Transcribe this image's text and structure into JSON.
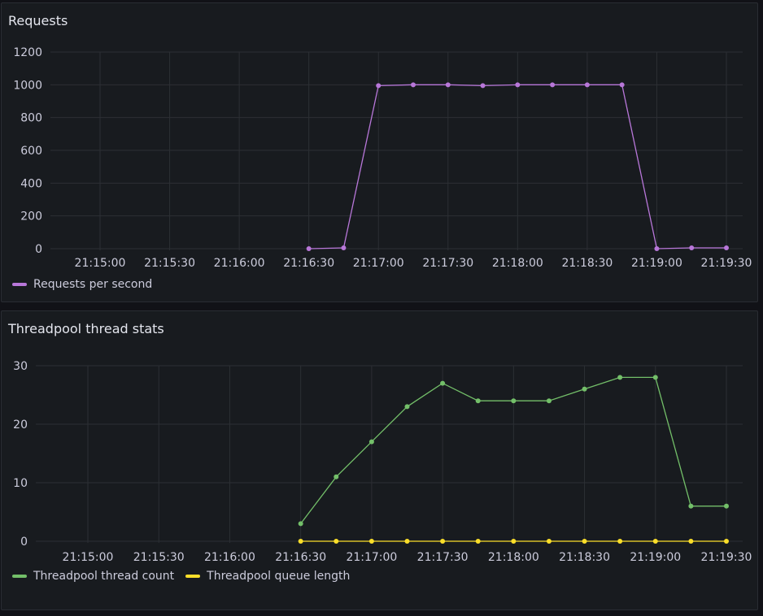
{
  "colors": {
    "requests": "#b877d9",
    "thread_count": "#73bf69",
    "queue_length": "#fade2a"
  },
  "chart_data": [
    {
      "type": "line",
      "title": "Requests",
      "x": [
        "21:16:30",
        "21:16:45",
        "21:17:00",
        "21:17:15",
        "21:17:30",
        "21:17:45",
        "21:18:00",
        "21:18:15",
        "21:18:30",
        "21:18:45",
        "21:19:00",
        "21:19:15",
        "21:19:30"
      ],
      "xticks": [
        "21:15:00",
        "21:15:30",
        "21:16:00",
        "21:16:30",
        "21:17:00",
        "21:17:30",
        "21:18:00",
        "21:18:30",
        "21:19:00",
        "21:19:30"
      ],
      "yticks": [
        0,
        200,
        400,
        600,
        800,
        1000,
        1200
      ],
      "ylim": [
        0,
        1200
      ],
      "grid": true,
      "legend_position": "bottom-left",
      "series": [
        {
          "name": "Requests per second",
          "color": "#b877d9",
          "values": [
            0,
            5,
            995,
            1000,
            1000,
            995,
            1000,
            1000,
            1000,
            1000,
            0,
            5,
            5
          ]
        }
      ]
    },
    {
      "type": "line",
      "title": "Threadpool thread stats",
      "x": [
        "21:16:30",
        "21:16:45",
        "21:17:00",
        "21:17:15",
        "21:17:30",
        "21:17:45",
        "21:18:00",
        "21:18:15",
        "21:18:30",
        "21:18:45",
        "21:19:00",
        "21:19:15",
        "21:19:30"
      ],
      "xticks": [
        "21:15:00",
        "21:15:30",
        "21:16:00",
        "21:16:30",
        "21:17:00",
        "21:17:30",
        "21:18:00",
        "21:18:30",
        "21:19:00",
        "21:19:30"
      ],
      "yticks": [
        0,
        10,
        20,
        30
      ],
      "ylim": [
        0,
        30
      ],
      "grid": true,
      "legend_position": "bottom-left",
      "series": [
        {
          "name": "Threadpool thread count",
          "color": "#73bf69",
          "values": [
            3,
            11,
            17,
            23,
            27,
            24,
            24,
            24,
            26,
            28,
            28,
            6,
            6
          ]
        },
        {
          "name": "Threadpool queue length",
          "color": "#fade2a",
          "values": [
            0,
            0,
            0,
            0,
            0,
            0,
            0,
            0,
            0,
            0,
            0,
            0,
            0
          ]
        }
      ]
    }
  ]
}
